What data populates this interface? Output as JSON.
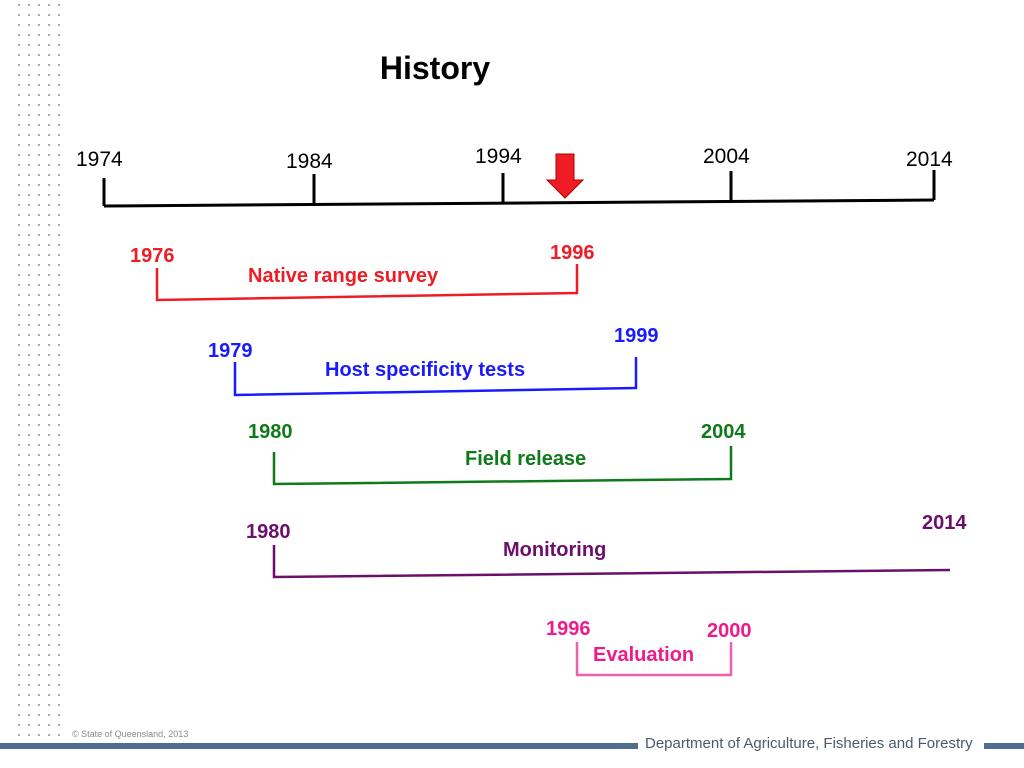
{
  "title": "History",
  "axis": {
    "ticks": [
      "1974",
      "1984",
      "1994",
      "2004",
      "2014"
    ],
    "marker": "red-down-arrow"
  },
  "phases": [
    {
      "label": "Native range survey",
      "start": "1976",
      "end": "1996",
      "color": "#ee1c25"
    },
    {
      "label": "Host specificity tests",
      "start": "1979",
      "end": "1999",
      "color": "#1a1aff"
    },
    {
      "label": "Field release",
      "start": "1980",
      "end": "2004",
      "color": "#0f7a1a"
    },
    {
      "label": "Monitoring",
      "start": "1980",
      "end": "2014",
      "color": "#6b0f6b"
    },
    {
      "label": "Evaluation",
      "start": "1996",
      "end": "2000",
      "color": "#ee1b8c"
    }
  ],
  "footer": {
    "copyright": "© State of Queensland, 2013",
    "department": "Department of Agriculture, Fisheries and Forestry",
    "bar_color": "#4f6e8e"
  }
}
